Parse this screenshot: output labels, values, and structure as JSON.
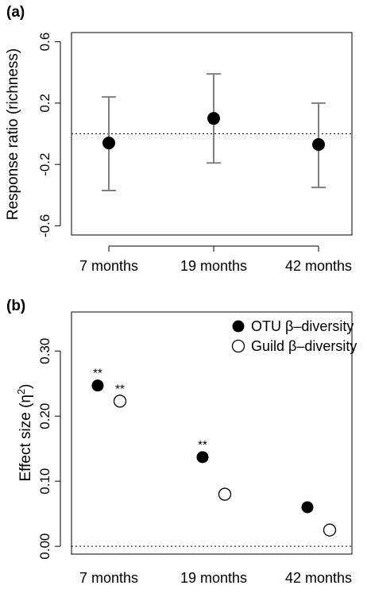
{
  "chart_data": [
    {
      "panel_label": "(a)",
      "type": "scatter",
      "ylabel": "Response ratio (richness)",
      "categories": [
        "7 months",
        "19 months",
        "42 months"
      ],
      "yticks": [
        "-0.6",
        "-0.2",
        "0.2",
        "0.6"
      ],
      "ylim": [
        -0.66,
        0.66
      ],
      "reference_line": 0,
      "series": [
        {
          "points": [
            {
              "x": "7 months",
              "y": -0.06,
              "lower": -0.37,
              "upper": 0.24
            },
            {
              "x": "19 months",
              "y": 0.1,
              "lower": -0.19,
              "upper": 0.39
            },
            {
              "x": "42 months",
              "y": -0.07,
              "lower": -0.35,
              "upper": 0.2
            }
          ]
        }
      ],
      "colors": {
        "point": "#000000",
        "error_bar": "#808080"
      }
    },
    {
      "panel_label": "(b)",
      "type": "scatter",
      "ylabel": "Effect size (η²)",
      "categories": [
        "7 months",
        "19 months",
        "42 months"
      ],
      "yticks": [
        "0.00",
        "0.10",
        "0.20",
        "0.30"
      ],
      "ylim": [
        -0.012,
        0.36
      ],
      "reference_line": 0,
      "legend": {
        "position": "top-right"
      },
      "series": [
        {
          "name": "OTU β–diversity",
          "marker": "filled",
          "values": [
            0.247,
            0.137,
            0.06
          ],
          "annotations": [
            "**",
            "**",
            ""
          ]
        },
        {
          "name": "Guild β–diversity",
          "marker": "open",
          "values": [
            0.223,
            0.08,
            0.025
          ],
          "annotations": [
            "**",
            "",
            ""
          ]
        }
      ]
    }
  ]
}
